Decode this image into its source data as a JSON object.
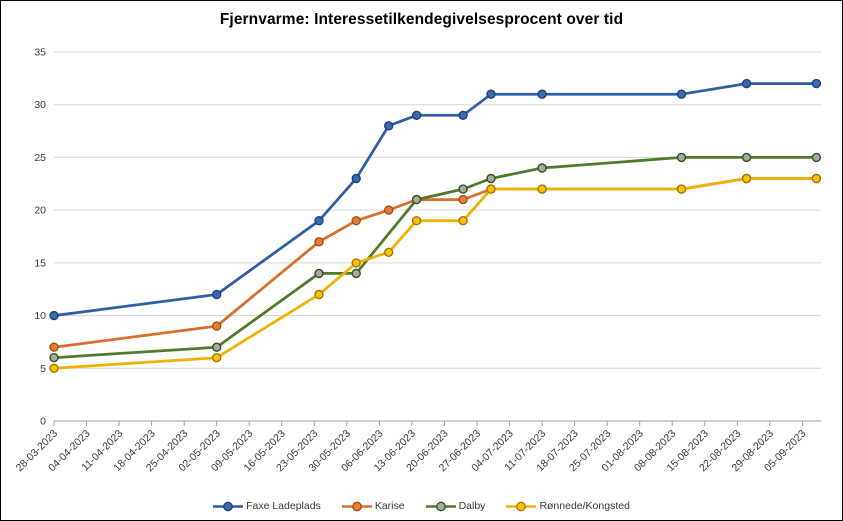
{
  "chart_data": {
    "type": "line",
    "title": "Fjernvarme: Interessetilkendegivelsesprocent over tid",
    "grid": true,
    "legend_position": "bottom",
    "y_axis": {
      "min": 0,
      "max": 35,
      "step": 5,
      "tick_labels": [
        "0",
        "5",
        "10",
        "15",
        "20",
        "25",
        "30",
        "35"
      ]
    },
    "x_axis": {
      "tick_labels": [
        "28-03-2023",
        "04-04-2023",
        "11-04-2023",
        "18-04-2023",
        "25-04-2023",
        "02-05-2023",
        "09-05-2023",
        "16-05-2023",
        "23-05-2023",
        "30-05-2023",
        "06-06-2023",
        "13-06-2023",
        "20-06-2023",
        "27-06-2023",
        "04-07-2023",
        "11-07-2023",
        "18-07-2023",
        "25-07-2023",
        "01-08-2023",
        "08-08-2023",
        "15-08-2023",
        "22-08-2023",
        "29-08-2023",
        "05-09-2023"
      ],
      "tick_interval_days": 7,
      "axis_span_days": 165,
      "x_unit": "days_since_first_tick"
    },
    "series": [
      {
        "name": "Faxe Ladeplads",
        "line_color": "#2E5EA6",
        "marker_fill": "#3C69B0",
        "marker_stroke": "#1E4476",
        "points": [
          {
            "day": 0,
            "value": 10
          },
          {
            "day": 35,
            "value": 12
          },
          {
            "day": 57,
            "value": 19
          },
          {
            "day": 65,
            "value": 23
          },
          {
            "day": 72,
            "value": 28
          },
          {
            "day": 78,
            "value": 29
          },
          {
            "day": 88,
            "value": 29
          },
          {
            "day": 94,
            "value": 31
          },
          {
            "day": 105,
            "value": 31
          },
          {
            "day": 135,
            "value": 31
          },
          {
            "day": 149,
            "value": 32
          },
          {
            "day": 164,
            "value": 32
          }
        ]
      },
      {
        "name": "Karise",
        "line_color": "#D96E2B",
        "marker_fill": "#E67E37",
        "marker_stroke": "#9C4E13",
        "points": [
          {
            "day": 0,
            "value": 7
          },
          {
            "day": 35,
            "value": 9
          },
          {
            "day": 57,
            "value": 17
          },
          {
            "day": 65,
            "value": 19
          },
          {
            "day": 72,
            "value": 20
          },
          {
            "day": 78,
            "value": 21
          },
          {
            "day": 88,
            "value": 21
          },
          {
            "day": 94,
            "value": 22
          },
          {
            "day": 105,
            "value": 22
          },
          {
            "day": 135,
            "value": 22
          },
          {
            "day": 149,
            "value": 23
          },
          {
            "day": 164,
            "value": 23
          }
        ]
      },
      {
        "name": "Dalby",
        "line_color": "#4E7A2A",
        "marker_fill": "#A8A8A8",
        "marker_stroke": "#33511B",
        "points": [
          {
            "day": 0,
            "value": 6
          },
          {
            "day": 35,
            "value": 7
          },
          {
            "day": 57,
            "value": 14
          },
          {
            "day": 65,
            "value": 14
          },
          {
            "day": 78,
            "value": 21
          },
          {
            "day": 88,
            "value": 22
          },
          {
            "day": 94,
            "value": 23
          },
          {
            "day": 105,
            "value": 24
          },
          {
            "day": 135,
            "value": 25
          },
          {
            "day": 149,
            "value": 25
          },
          {
            "day": 164,
            "value": 25
          }
        ]
      },
      {
        "name": "Rønnede/Kongsted",
        "line_color": "#EDB100",
        "marker_fill": "#FFC103",
        "marker_stroke": "#9E7A00",
        "points": [
          {
            "day": 0,
            "value": 5
          },
          {
            "day": 35,
            "value": 6
          },
          {
            "day": 57,
            "value": 12
          },
          {
            "day": 65,
            "value": 15
          },
          {
            "day": 72,
            "value": 16
          },
          {
            "day": 78,
            "value": 19
          },
          {
            "day": 88,
            "value": 19
          },
          {
            "day": 94,
            "value": 22
          },
          {
            "day": 105,
            "value": 22
          },
          {
            "day": 135,
            "value": 22
          },
          {
            "day": 149,
            "value": 23
          },
          {
            "day": 164,
            "value": 23
          }
        ]
      }
    ],
    "colors": {
      "gridline": "#D6D6D6",
      "axis_line": "#A0A0A0",
      "tick_label": "#3A3A3A",
      "title": "#000000",
      "background": "#FFFFFF"
    }
  }
}
